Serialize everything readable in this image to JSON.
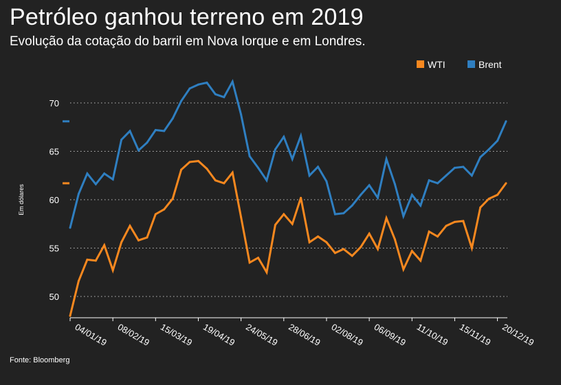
{
  "header": {
    "title": "Petróleo ganhou terreno em 2019",
    "subtitle": "Evolução da cotação do barril em Nova Iorque e em Londres."
  },
  "footer": {
    "source": "Fonte: Bloomberg"
  },
  "chart_data": {
    "type": "line",
    "title": "Petróleo ganhou terreno em 2019",
    "subtitle": "Evolução da cotação do barril em Nova Iorque e em Londres.",
    "xlabel": "",
    "ylabel": "Em dólares",
    "ylim": [
      48,
      73
    ],
    "yticks": [
      50,
      55,
      60,
      65,
      70
    ],
    "grid": "horizontal-dotted",
    "legend_position": "top-right",
    "x_tick_labels": [
      "04/01/19",
      "08/02/19",
      "15/03/19",
      "19/04/19",
      "24/05/19",
      "28/06/19",
      "02/08/19",
      "06/09/19",
      "11/10/19",
      "15/11/19",
      "20/12/19"
    ],
    "x_tick_positions": [
      0,
      5,
      10,
      15,
      20,
      25,
      30,
      35,
      40,
      45,
      50
    ],
    "x": [
      0,
      1,
      2,
      3,
      4,
      5,
      6,
      7,
      8,
      9,
      10,
      11,
      12,
      13,
      14,
      15,
      16,
      17,
      18,
      19,
      20,
      21,
      22,
      23,
      24,
      25,
      26,
      27,
      28,
      29,
      30,
      31,
      32,
      33,
      34,
      35,
      36,
      37,
      38,
      39,
      40,
      41,
      42,
      43,
      44,
      45,
      46,
      47,
      48,
      49,
      50,
      51
    ],
    "series": [
      {
        "name": "WTI",
        "color": "#f7881f",
        "values": [
          48.0,
          51.6,
          53.8,
          53.7,
          55.3,
          52.7,
          55.6,
          57.3,
          55.8,
          56.1,
          58.5,
          59.0,
          60.1,
          63.1,
          63.9,
          64.0,
          63.2,
          62.0,
          61.7,
          62.8,
          58.2,
          53.5,
          54.0,
          52.5,
          57.4,
          58.5,
          57.5,
          60.2,
          55.6,
          56.2,
          55.6,
          54.5,
          54.9,
          54.2,
          55.1,
          56.5,
          54.9,
          58.1,
          55.9,
          52.8,
          54.7,
          53.7,
          56.7,
          56.2,
          57.3,
          57.7,
          57.8,
          55.0,
          59.2,
          60.1,
          60.5,
          61.7
        ]
      },
      {
        "name": "Brent",
        "color": "#2f7fc1",
        "values": [
          57.1,
          60.6,
          62.7,
          61.6,
          62.7,
          62.1,
          66.2,
          67.1,
          65.1,
          65.9,
          67.2,
          67.1,
          68.4,
          70.2,
          71.5,
          71.9,
          72.1,
          70.9,
          70.6,
          72.2,
          68.8,
          64.5,
          63.3,
          62.0,
          65.2,
          66.5,
          64.2,
          66.6,
          62.5,
          63.4,
          61.9,
          58.5,
          58.6,
          59.4,
          60.5,
          61.5,
          60.2,
          64.2,
          61.6,
          58.3,
          60.5,
          59.4,
          62.0,
          61.7,
          62.5,
          63.3,
          63.4,
          62.5,
          64.4,
          65.2,
          66.1,
          68.1
        ]
      }
    ],
    "end_markers": [
      {
        "series": "Brent",
        "value": 68.1
      },
      {
        "series": "WTI",
        "value": 61.7
      }
    ]
  }
}
